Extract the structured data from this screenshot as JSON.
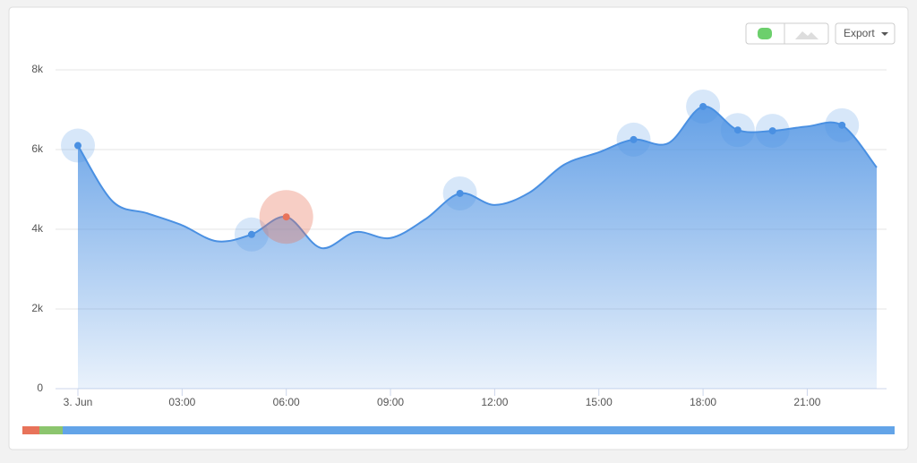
{
  "export_label": "Export",
  "chart_data": {
    "type": "area",
    "categories": [
      "3. Jun",
      null,
      null,
      "03:00",
      null,
      null,
      "06:00",
      null,
      null,
      "09:00",
      null,
      null,
      "12:00",
      null,
      null,
      "15:00",
      null,
      null,
      "18:00",
      null,
      null,
      "21:00",
      null,
      null
    ],
    "series": [
      {
        "color": "#4a90e2",
        "values": [
          6100,
          4700,
          4400,
          4100,
          3700,
          3870,
          4310,
          3530,
          3930,
          3780,
          4250,
          4900,
          4610,
          4920,
          5620,
          5930,
          6250,
          6160,
          7080,
          6490,
          6470,
          6580,
          6610,
          5550
        ]
      }
    ],
    "highlighted": [
      0,
      5,
      6,
      11,
      16,
      18,
      19,
      20,
      22
    ],
    "alert_index": 6,
    "ylim": [
      0,
      8000
    ],
    "yticks": [
      0,
      {
        "value": 2000,
        "label": "2k"
      },
      {
        "value": 4000,
        "label": "4k"
      },
      {
        "value": 6000,
        "label": "6k"
      },
      {
        "value": 8000,
        "label": "8k"
      }
    ],
    "grid": true
  }
}
